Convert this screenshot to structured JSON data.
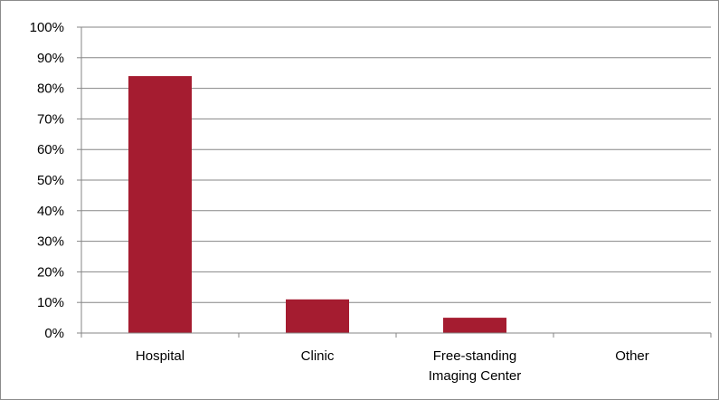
{
  "chart_data": {
    "type": "bar",
    "categories": [
      [
        "Hospital"
      ],
      [
        "Clinic"
      ],
      [
        "Free-standing",
        "Imaging Center"
      ],
      [
        "Other"
      ]
    ],
    "values": [
      84,
      11,
      5,
      0
    ],
    "ylim": [
      0,
      100
    ],
    "yticks": [
      0,
      10,
      20,
      30,
      40,
      50,
      60,
      70,
      80,
      90,
      100
    ],
    "ytick_labels": [
      "0%",
      "10%",
      "20%",
      "30%",
      "40%",
      "50%",
      "60%",
      "70%",
      "80%",
      "90%",
      "100%"
    ],
    "grid": true,
    "legend": "none",
    "bar_color": "#a51c30",
    "grid_color": "#868686"
  }
}
